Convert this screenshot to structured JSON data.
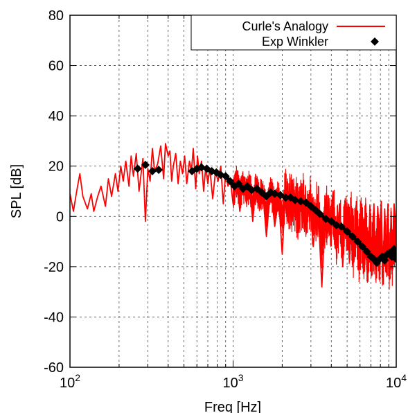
{
  "chart_data": {
    "type": "line",
    "xlabel": "Freq [Hz]",
    "ylabel": "SPL [dB]",
    "x_scale": "log",
    "xlim": [
      100,
      10000
    ],
    "ylim": [
      -60,
      80
    ],
    "grid": true,
    "legend_position": "top-right",
    "x_ticks": [
      {
        "value": 100,
        "base": "10",
        "exp": "2"
      },
      {
        "value": 1000,
        "base": "10",
        "exp": "3"
      },
      {
        "value": 10000,
        "base": "10",
        "exp": "4"
      }
    ],
    "y_ticks": [
      {
        "value": 80,
        "label": "80"
      },
      {
        "value": 60,
        "label": "60"
      },
      {
        "value": 40,
        "label": "40"
      },
      {
        "value": 20,
        "label": "20"
      },
      {
        "value": 0,
        "label": "0"
      },
      {
        "value": -20,
        "label": "-20"
      },
      {
        "value": -40,
        "label": "-40"
      },
      {
        "value": -60,
        "label": "-60"
      }
    ],
    "series": [
      {
        "name": "Curle's Analogy",
        "style": "line",
        "color": "#ff0000",
        "x": [
          100,
          105,
          110,
          115,
          120,
          128,
          135,
          140,
          148,
          155,
          165,
          172,
          180,
          190,
          197,
          205,
          212,
          220,
          230,
          237,
          245,
          255,
          265,
          280,
          290,
          300,
          310,
          320,
          330,
          345,
          360,
          375,
          385,
          400,
          410,
          420,
          430,
          445,
          460,
          475,
          490,
          505,
          520,
          540,
          555,
          570,
          590,
          605,
          620,
          640,
          660,
          680,
          700,
          720,
          750,
          780,
          810,
          840,
          870,
          900,
          930,
          960,
          1000,
          1050,
          1100,
          1150,
          1200,
          1260,
          1320,
          1380,
          1450,
          1520,
          1600,
          1700,
          1800,
          1900,
          2000,
          2100,
          2200,
          2350,
          2500,
          2650,
          2800,
          2950,
          3100,
          3300,
          3500,
          3700,
          3900,
          4100,
          4300,
          4500,
          4700,
          4900,
          5100,
          5300,
          5500,
          5700,
          5900,
          6100,
          6300,
          6500,
          6700,
          6900,
          7100,
          7300,
          7500,
          7700,
          7900,
          8100,
          8300,
          8500,
          8700,
          8900,
          9100,
          9300,
          9500,
          9700,
          10000
        ],
        "y": [
          9,
          2,
          10,
          17,
          8,
          3,
          9,
          2,
          8,
          12,
          4,
          15,
          8,
          17,
          10,
          20,
          14,
          22,
          12,
          24,
          16,
          25,
          10,
          23,
          -2,
          19,
          14,
          27,
          18,
          21,
          28,
          15,
          29,
          24,
          26,
          14,
          20,
          25,
          13,
          22,
          17,
          24,
          13,
          22,
          18,
          27,
          11,
          24,
          17,
          22,
          10,
          20,
          13,
          19,
          7,
          18,
          14,
          20,
          5,
          17,
          12,
          15,
          5,
          16,
          2,
          15,
          6,
          13,
          -2,
          14,
          3,
          10,
          -8,
          12,
          -4,
          8,
          -15,
          11,
          1,
          4,
          -3,
          9,
          -7,
          8,
          -12,
          7,
          -28,
          6,
          -6,
          10,
          -14,
          5,
          -20,
          6,
          -10,
          4,
          -18,
          6,
          -16,
          3,
          -13,
          5,
          -22,
          4,
          -17,
          5,
          -23,
          4,
          -10,
          6,
          -24,
          3,
          -16,
          5,
          -25,
          2,
          -20,
          5,
          -7
        ],
        "variation_band": [
          {
            "x_min": 1000,
            "x_max": 2000,
            "amplitude": 7
          },
          {
            "x_min": 2000,
            "x_max": 5000,
            "amplitude": 12
          },
          {
            "x_min": 5000,
            "x_max": 10000,
            "amplitude": 14
          }
        ]
      },
      {
        "name": "Exp Winkler",
        "style": "points-line",
        "color": "#000000",
        "x": [
          260,
          290,
          320,
          350,
          560,
          600,
          640,
          690,
          740,
          790,
          840,
          900,
          960,
          1020,
          1080,
          1150,
          1220,
          1300,
          1400,
          1500,
          1600,
          1700,
          1800,
          1950,
          2100,
          2250,
          2400,
          2600,
          2800,
          3000,
          3200,
          3400,
          3700,
          4000,
          4300,
          4600,
          5000,
          5400,
          5800,
          6200,
          6600,
          7000,
          7300,
          7600,
          7900,
          8200,
          8500,
          8800,
          9100,
          9400,
          9700,
          10000
        ],
        "y": [
          19,
          20.5,
          18,
          18.5,
          18,
          19,
          19.5,
          19,
          18,
          17.5,
          16.5,
          16,
          14,
          12,
          13,
          11,
          12,
          10.5,
          11,
          9.5,
          8,
          9.5,
          9,
          8.5,
          7.5,
          7.5,
          6.5,
          6,
          5.5,
          4,
          2.5,
          1,
          -1,
          -2,
          -3.5,
          -4,
          -6,
          -8,
          -10,
          -12,
          -14,
          -16,
          -17,
          -18.5,
          -17,
          -16,
          -17.5,
          -15,
          -14.5,
          -16,
          -13,
          -17
        ]
      }
    ]
  }
}
